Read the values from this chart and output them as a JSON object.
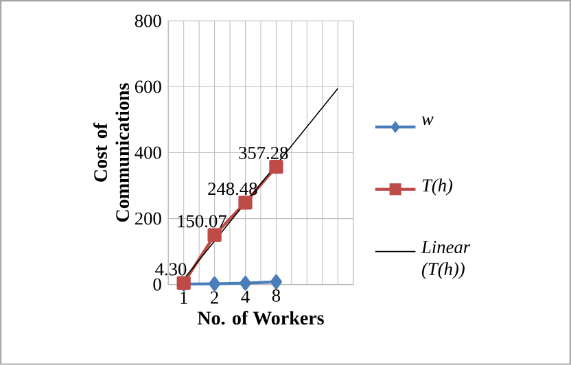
{
  "chart_data": {
    "type": "line",
    "xlabel": "No. of Workers",
    "ylabel": "Cost of Communications",
    "categories": [
      null,
      null,
      null,
      null,
      null,
      null
    ],
    "ylim": [
      0,
      800
    ],
    "yticks": [
      0,
      200,
      400,
      600,
      800
    ],
    "tick_labels": "y",
    "grid": true,
    "legend": "right",
    "line_style": "solid",
    "series": [
      {
        "name": "w",
        "color": "#4a7ebb",
        "marker": "diamond",
        "values": [
          1,
          2,
          4,
          8,
          null,
          null
        ],
        "value_labels": [
          "1",
          "2",
          "4",
          "8",
          null,
          null
        ]
      },
      {
        "name": "T(h)",
        "color": "#be4b48",
        "marker": "square",
        "values": [
          4.3,
          150.07,
          248.48,
          357.28,
          null,
          null
        ],
        "value_labels": [
          "4.30",
          "150.07",
          "248.48",
          "357.28",
          null,
          null
        ]
      },
      {
        "name": "Linear (T(h))",
        "color": "#000000",
        "marker": "none",
        "values": [
          16,
          132,
          248,
          363,
          479,
          595
        ]
      }
    ]
  }
}
